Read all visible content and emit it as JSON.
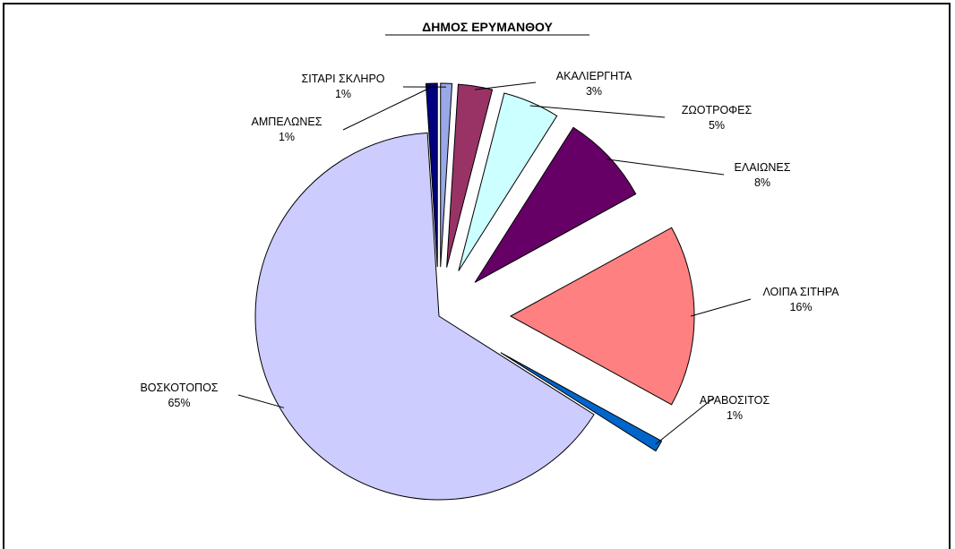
{
  "chart_data": {
    "type": "pie",
    "title": "ΔΗΜΟΣ ΕΡΥΜΑΝΘΟΥ",
    "slices": [
      {
        "label": "ΣΙΤΑΡΙ ΣΚΛΗΡΟ",
        "value": 1,
        "percent_label": "1%",
        "color": "#99A9E8"
      },
      {
        "label": "ΑΚΑΛΙΕΡΓΗΤΑ",
        "value": 3,
        "percent_label": "3%",
        "color": "#993366"
      },
      {
        "label": "ΖΩΟΤΡΟΦΕΣ",
        "value": 5,
        "percent_label": "5%",
        "color": "#CCFFFF"
      },
      {
        "label": "ΕΛΑΙΩΝΕΣ",
        "value": 8,
        "percent_label": "8%",
        "color": "#660066"
      },
      {
        "label": "ΛΟΙΠΑ ΣΙΤΗΡΑ",
        "value": 16,
        "percent_label": "16%",
        "color": "#FF8080"
      },
      {
        "label": "ΑΡΑΒΟΣΙΤΟΣ",
        "value": 1,
        "percent_label": "1%",
        "color": "#0066CC"
      },
      {
        "label": "ΒΟΣΚΟΤΟΠΟΣ",
        "value": 65,
        "percent_label": "65%",
        "color": "#CCCCFF"
      },
      {
        "label": "ΑΜΠΕΛΩΝΕΣ",
        "value": 1,
        "percent_label": "1%",
        "color": "#000080"
      }
    ],
    "legend": "none",
    "exploded": true
  }
}
